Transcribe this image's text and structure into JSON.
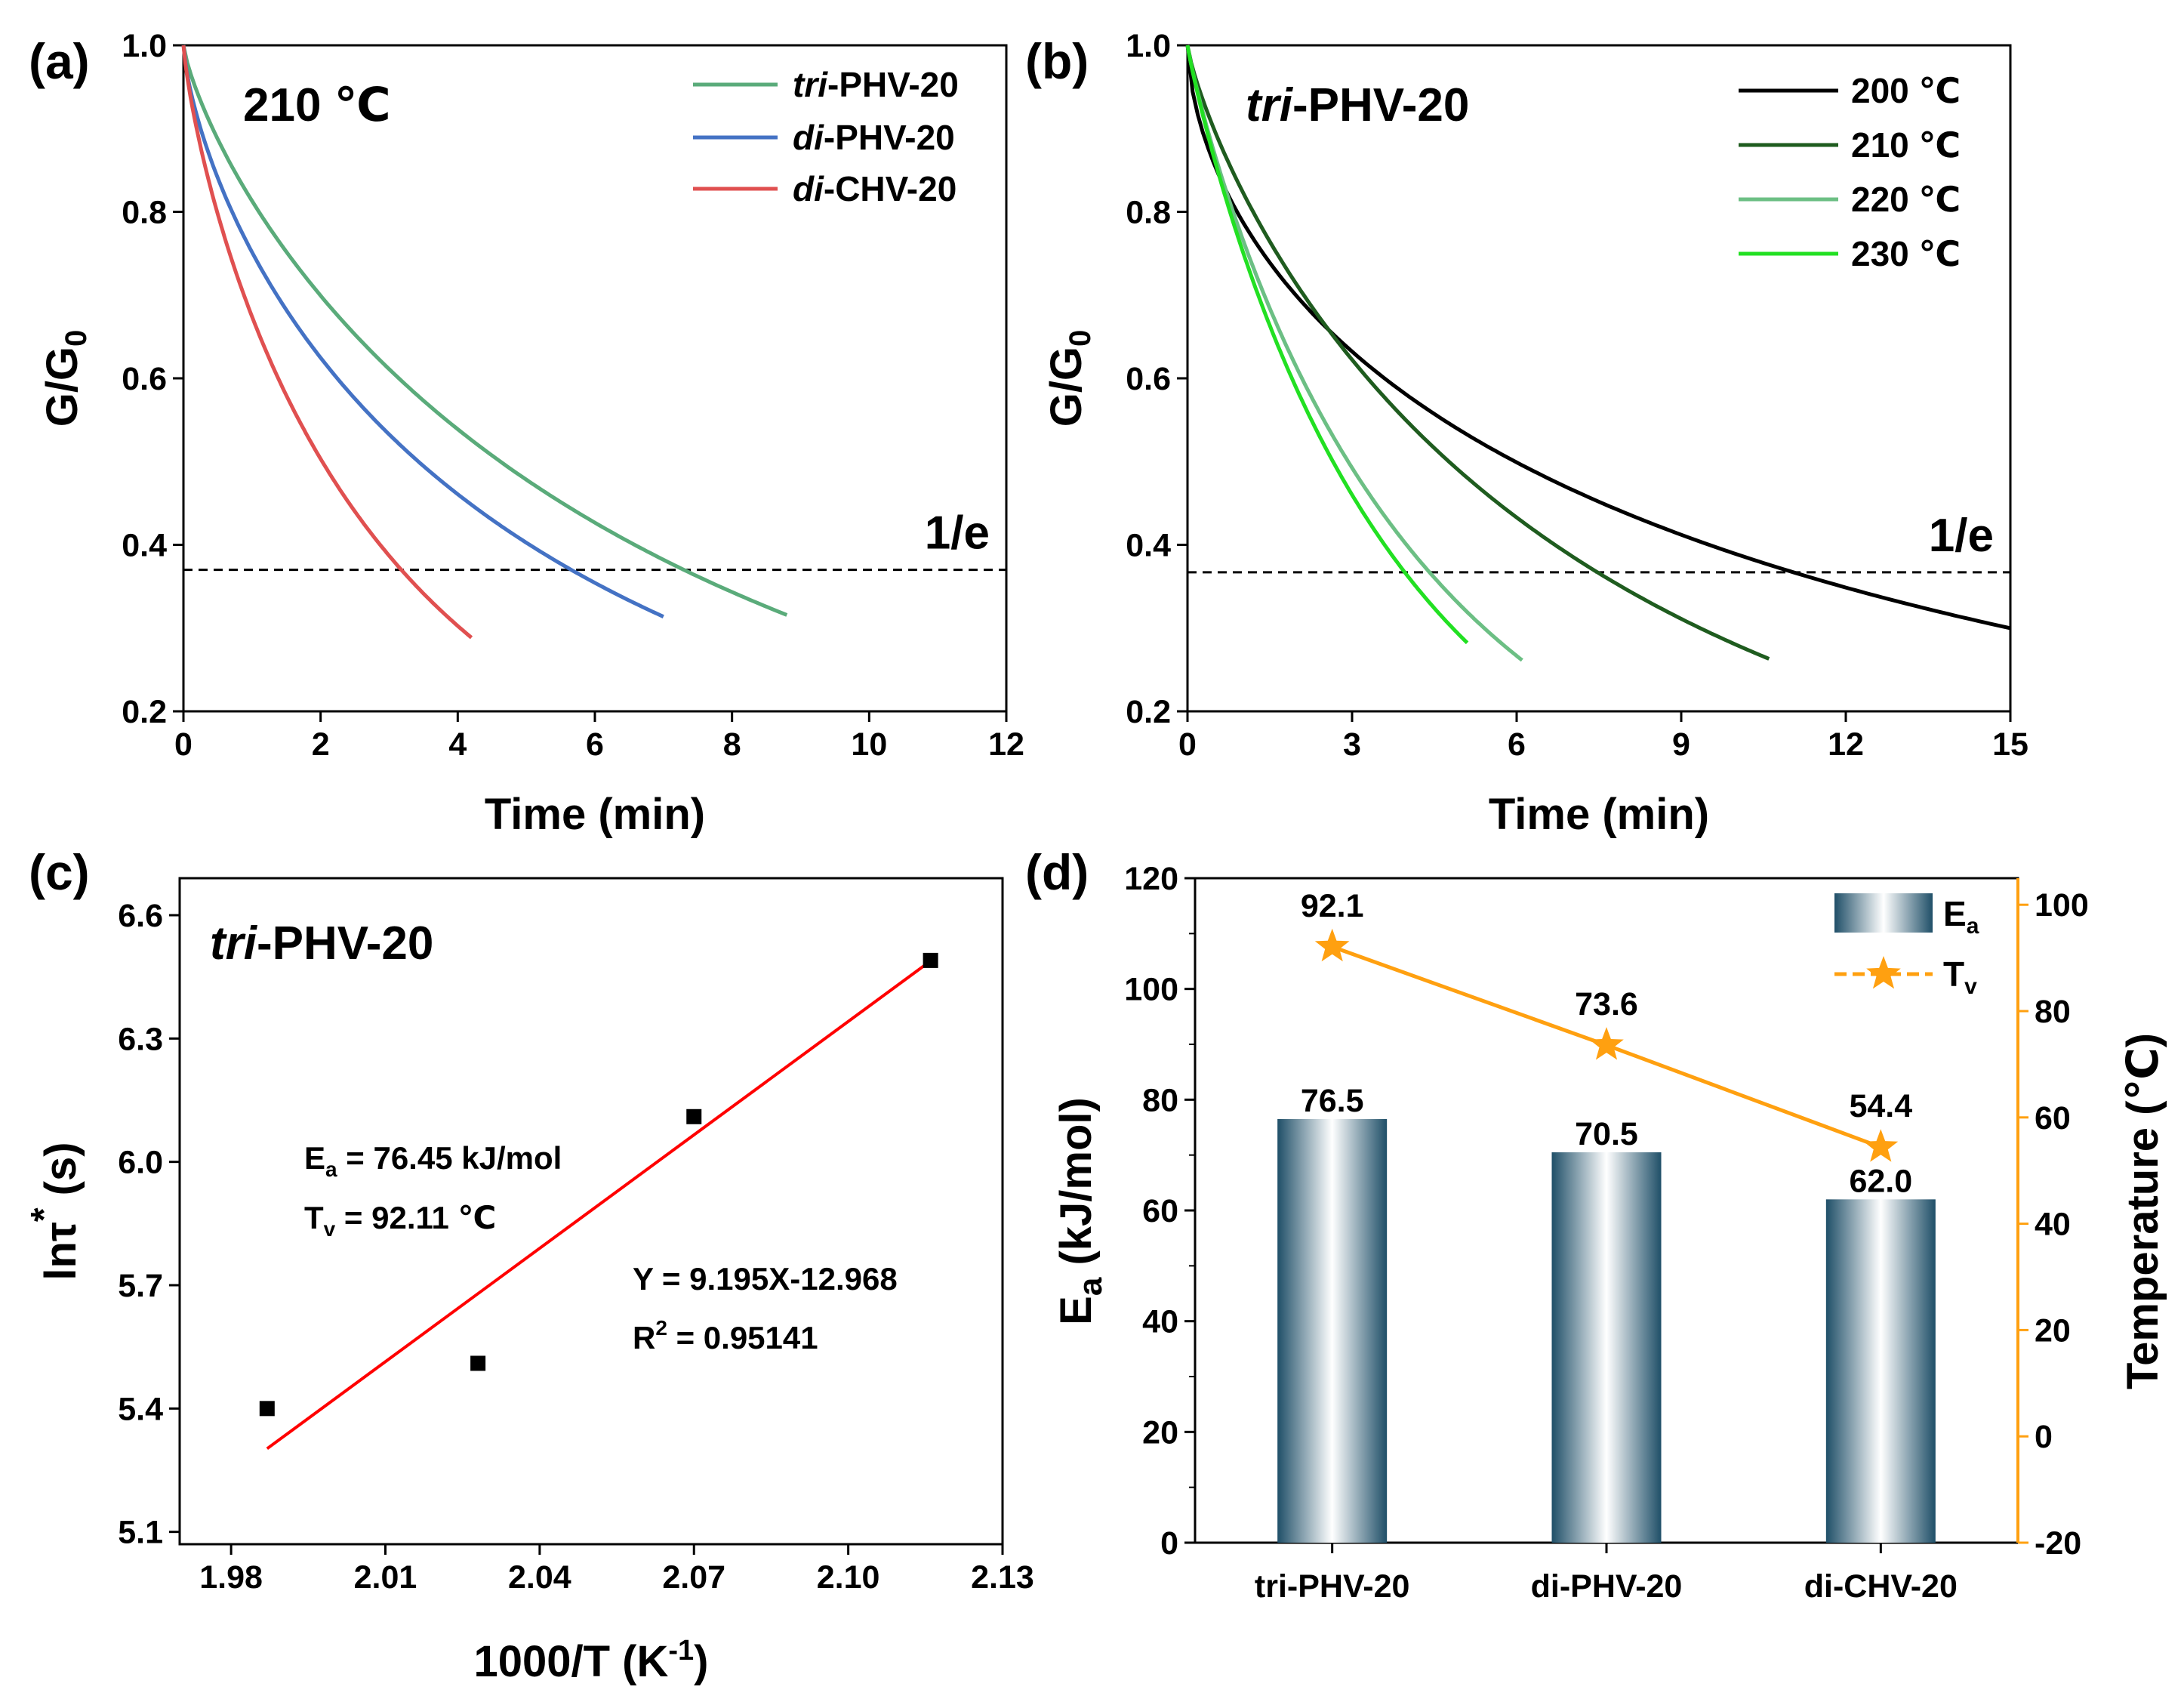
{
  "colors": {
    "tri": "#5aab7a",
    "di_phv": "#4472c4",
    "di_chv": "#e05050",
    "t200": "#000000",
    "t210": "#1f5c1f",
    "t220": "#6cbf84",
    "t230": "#22e022",
    "fit": "#ff0000",
    "ea_axis": "#1e6b82",
    "tv_axis": "#ffa010",
    "bar_dark": "#1f4f68"
  },
  "chart_data": [
    {
      "panel": "(a)",
      "type": "line",
      "annotation": "210 ℃",
      "xlabel": "Time (min)",
      "ylabel": {
        "base": "G/G",
        "sub": "0"
      },
      "xlim": [
        0,
        12
      ],
      "ylim": [
        0.2,
        1.0
      ],
      "xticks": [
        "0",
        "2",
        "4",
        "6",
        "8",
        "10",
        "12"
      ],
      "yticks": [
        "0.2",
        "0.4",
        "0.6",
        "0.8",
        "1.0"
      ],
      "reference_line": {
        "y": 0.37,
        "label": "1/e"
      },
      "series": [
        {
          "name_italic": "tri",
          "name_rest": "-PHV-20",
          "color": "#5aab7a",
          "tau": 7.35,
          "beta": 0.79,
          "xmax": 8.8
        },
        {
          "name_italic": "di",
          "name_rest": "-PHV-20",
          "color": "#4472c4",
          "tau": 5.7,
          "beta": 0.72,
          "xmax": 7.0
        },
        {
          "name_italic": "di",
          "name_rest": "-CHV-20",
          "color": "#e05050",
          "tau": 3.2,
          "beta": 0.8,
          "xmax": 4.2
        }
      ]
    },
    {
      "panel": "(b)",
      "type": "line",
      "annotation": {
        "italic": "tri",
        "rest": "-PHV-20"
      },
      "xlabel": "Time (min)",
      "ylabel": {
        "base": "G/G",
        "sub": "0"
      },
      "xlim": [
        0,
        15
      ],
      "ylim": [
        0.2,
        1.0
      ],
      "xticks": [
        "0",
        "3",
        "6",
        "9",
        "12",
        "15"
      ],
      "yticks": [
        "0.2",
        "0.4",
        "0.6",
        "0.8",
        "1.0"
      ],
      "reference_line": {
        "y": 0.367,
        "label": "1/e"
      },
      "series": [
        {
          "name": "200 ℃",
          "color": "#000000",
          "tau": 11.0,
          "beta": 0.6,
          "xmax": 15.0
        },
        {
          "name": "210 ℃",
          "color": "#1f5c1f",
          "tau": 7.45,
          "beta": 0.82,
          "xmax": 10.6
        },
        {
          "name": "220 ℃",
          "color": "#6cbf84",
          "tau": 4.4,
          "beta": 0.9,
          "xmax": 6.1
        },
        {
          "name": "230 ℃",
          "color": "#22e022",
          "tau": 3.95,
          "beta": 0.92,
          "xmax": 5.1
        }
      ]
    },
    {
      "panel": "(c)",
      "type": "scatter",
      "annotation": {
        "italic": "tri",
        "rest": "-PHV-20"
      },
      "xlabel": {
        "base": "1000/T (K",
        "sup": "-1",
        "end": ")"
      },
      "ylabel": {
        "base": "lnτ",
        "sup": "*",
        "end": " (s)"
      },
      "xlim": [
        1.97,
        2.13
      ],
      "ylim": [
        5.07,
        6.69
      ],
      "xticks": [
        "1.98",
        "2.01",
        "2.04",
        "2.07",
        "2.10",
        "2.13"
      ],
      "yticks": [
        "5.1",
        "5.4",
        "5.7",
        "6.0",
        "6.3",
        "6.6"
      ],
      "x": [
        1.987,
        2.028,
        2.07,
        2.116
      ],
      "y": [
        5.4,
        5.51,
        6.11,
        6.49
      ],
      "fit": {
        "slope": 9.195,
        "intercept": -12.968,
        "x_range": [
          1.987,
          2.116
        ]
      },
      "equations": {
        "ea": {
          "base": "E",
          "sub": "a",
          "rest": " = 76.45 kJ/mol"
        },
        "tv": {
          "base": "T",
          "sub": "v",
          "rest": " = 92.11 ℃"
        },
        "fit_eq": "Y = 9.195X-12.968",
        "r2": {
          "base": "R",
          "sup": "2",
          "rest": " = 0.95141"
        }
      }
    },
    {
      "panel": "(d)",
      "type": "bar",
      "categories": [
        "tri-PHV-20",
        "di-PHV-20",
        "di-CHV-20"
      ],
      "series": [
        {
          "name": {
            "base": "E",
            "sub": "a"
          },
          "kind": "bar",
          "axis": "left",
          "values": [
            76.5,
            70.5,
            62.0
          ],
          "labels": [
            "76.5",
            "70.5",
            "62.0"
          ]
        },
        {
          "name": {
            "base": "T",
            "sub": "v"
          },
          "kind": "line-star",
          "axis": "right",
          "values": [
            92.1,
            73.6,
            54.4
          ],
          "labels": [
            "92.1",
            "73.6",
            "54.4"
          ]
        }
      ],
      "ylabel_left": {
        "base": "E",
        "sub": "a",
        "rest": " (kJ/mol)"
      },
      "ylabel_right": "Temperature (℃)",
      "ylim_left": [
        0,
        120
      ],
      "ylim_right": [
        -20,
        105
      ],
      "yticks_left": [
        "0",
        "20",
        "40",
        "60",
        "80",
        "100",
        "120"
      ],
      "yticks_right": [
        "-20",
        "0",
        "20",
        "40",
        "60",
        "80",
        "100"
      ]
    }
  ]
}
